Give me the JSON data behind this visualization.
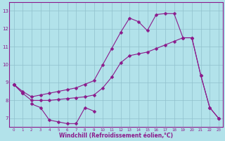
{
  "xlabel": "Windchill (Refroidissement éolien,°C)",
  "bg_color": "#b2e2ea",
  "line_color": "#8b1a8b",
  "grid_color": "#90c0cc",
  "series1_x": [
    0,
    1
  ],
  "series1_y": [
    8.9,
    8.4
  ],
  "series2_x": [
    2,
    3,
    4,
    5,
    6,
    7,
    8,
    9
  ],
  "series2_y": [
    7.8,
    7.6,
    6.9,
    6.8,
    6.7,
    6.7,
    7.6,
    7.4
  ],
  "series3_x": [
    0,
    1,
    2,
    3,
    4,
    5,
    6,
    7,
    8,
    9,
    10,
    11,
    12,
    13,
    14,
    15,
    16,
    17,
    18,
    19,
    20,
    21,
    22,
    23
  ],
  "series3_y": [
    8.9,
    8.5,
    8.2,
    8.3,
    8.4,
    8.5,
    8.6,
    8.7,
    8.9,
    9.1,
    10.0,
    10.9,
    11.8,
    12.6,
    12.4,
    11.9,
    12.8,
    12.85,
    12.85,
    11.5,
    11.5,
    9.4,
    7.6,
    7.0
  ],
  "series4_x": [
    0,
    1,
    2,
    3,
    4,
    5,
    6,
    7,
    8,
    9,
    10,
    11,
    12,
    13,
    14,
    15,
    16,
    17,
    18,
    19,
    20,
    21,
    22,
    23
  ],
  "series4_y": [
    8.9,
    8.4,
    8.0,
    8.0,
    8.0,
    8.05,
    8.1,
    8.15,
    8.2,
    8.3,
    8.7,
    9.3,
    10.1,
    10.5,
    10.6,
    10.7,
    10.9,
    11.1,
    11.3,
    11.5,
    11.5,
    9.4,
    7.6,
    7.0
  ],
  "ylim": [
    6.5,
    13.5
  ],
  "xlim": [
    -0.5,
    23.5
  ],
  "yticks": [
    7,
    8,
    9,
    10,
    11,
    12,
    13
  ],
  "xticks": [
    0,
    1,
    2,
    3,
    4,
    5,
    6,
    7,
    8,
    9,
    10,
    11,
    12,
    13,
    14,
    15,
    16,
    17,
    18,
    19,
    20,
    21,
    22,
    23
  ],
  "marker_size": 2.5,
  "line_width": 0.8,
  "tick_fontsize": 4.0,
  "xlabel_fontsize": 5.5
}
